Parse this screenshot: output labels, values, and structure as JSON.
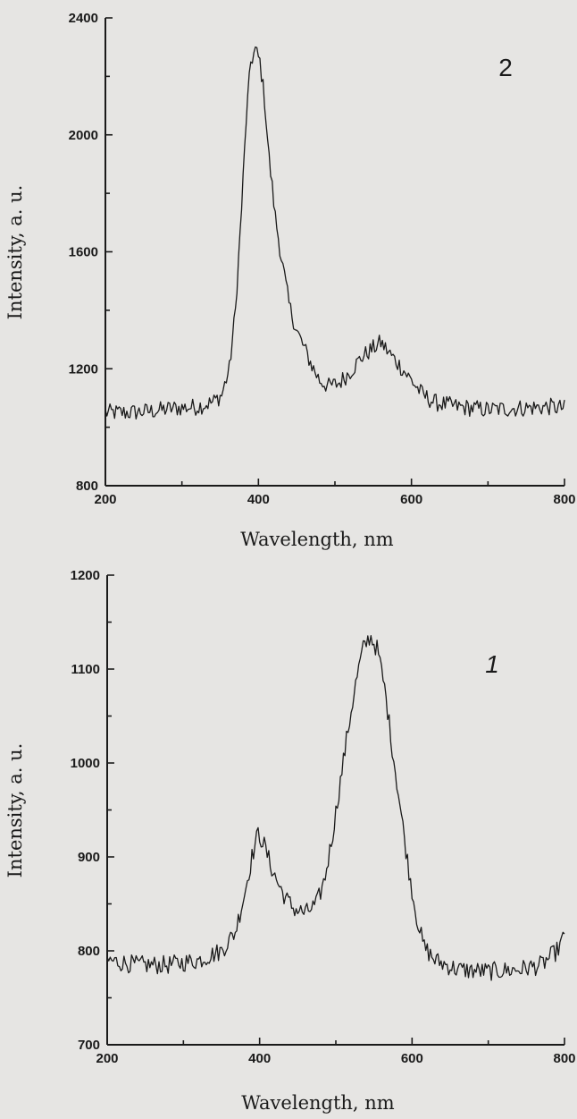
{
  "chart_data": [
    {
      "type": "line",
      "panel_label": "2",
      "xlabel": "Wavelength, nm",
      "ylabel": "Intensity, a. u.",
      "xlim": [
        200,
        800
      ],
      "ylim": [
        800,
        2400
      ],
      "xticks": [
        200,
        400,
        600,
        800
      ],
      "yticks": [
        800,
        1200,
        1600,
        2000,
        2400
      ],
      "series": [
        {
          "noise": 30,
          "points": [
            [
              200,
              1050
            ],
            [
              230,
              1050
            ],
            [
              260,
              1055
            ],
            [
              290,
              1065
            ],
            [
              320,
              1070
            ],
            [
              340,
              1085
            ],
            [
              352,
              1110
            ],
            [
              362,
              1200
            ],
            [
              370,
              1400
            ],
            [
              378,
              1750
            ],
            [
              384,
              2050
            ],
            [
              390,
              2250
            ],
            [
              396,
              2290
            ],
            [
              402,
              2250
            ],
            [
              408,
              2120
            ],
            [
              414,
              1920
            ],
            [
              422,
              1720
            ],
            [
              430,
              1580
            ],
            [
              440,
              1420
            ],
            [
              450,
              1330
            ],
            [
              460,
              1270
            ],
            [
              470,
              1210
            ],
            [
              480,
              1160
            ],
            [
              492,
              1140
            ],
            [
              505,
              1150
            ],
            [
              520,
              1190
            ],
            [
              535,
              1240
            ],
            [
              550,
              1270
            ],
            [
              560,
              1290
            ],
            [
              572,
              1250
            ],
            [
              585,
              1210
            ],
            [
              600,
              1160
            ],
            [
              615,
              1110
            ],
            [
              630,
              1085
            ],
            [
              660,
              1070
            ],
            [
              700,
              1060
            ],
            [
              740,
              1065
            ],
            [
              780,
              1070
            ],
            [
              800,
              1065
            ]
          ]
        }
      ]
    },
    {
      "type": "line",
      "panel_label": "1",
      "xlabel": "Wavelength, nm",
      "ylabel": "Intensity, a. u.",
      "xlim": [
        200,
        800
      ],
      "ylim": [
        700,
        1200
      ],
      "xticks": [
        200,
        400,
        600,
        800
      ],
      "yticks": [
        700,
        800,
        900,
        1000,
        1100,
        1200
      ],
      "series": [
        {
          "noise": 10,
          "points": [
            [
              200,
              790
            ],
            [
              240,
              785
            ],
            [
              280,
              785
            ],
            [
              320,
              790
            ],
            [
              350,
              800
            ],
            [
              368,
              820
            ],
            [
              380,
              860
            ],
            [
              390,
              900
            ],
            [
              398,
              925
            ],
            [
              405,
              915
            ],
            [
              415,
              890
            ],
            [
              425,
              870
            ],
            [
              435,
              855
            ],
            [
              445,
              845
            ],
            [
              460,
              840
            ],
            [
              475,
              850
            ],
            [
              485,
              875
            ],
            [
              495,
              920
            ],
            [
              505,
              975
            ],
            [
              515,
              1030
            ],
            [
              525,
              1080
            ],
            [
              535,
              1120
            ],
            [
              545,
              1135
            ],
            [
              555,
              1120
            ],
            [
              565,
              1075
            ],
            [
              575,
              1010
            ],
            [
              585,
              950
            ],
            [
              595,
              890
            ],
            [
              605,
              840
            ],
            [
              615,
              805
            ],
            [
              630,
              790
            ],
            [
              660,
              780
            ],
            [
              700,
              778
            ],
            [
              740,
              780
            ],
            [
              770,
              785
            ],
            [
              790,
              800
            ],
            [
              800,
              815
            ]
          ]
        }
      ]
    }
  ]
}
